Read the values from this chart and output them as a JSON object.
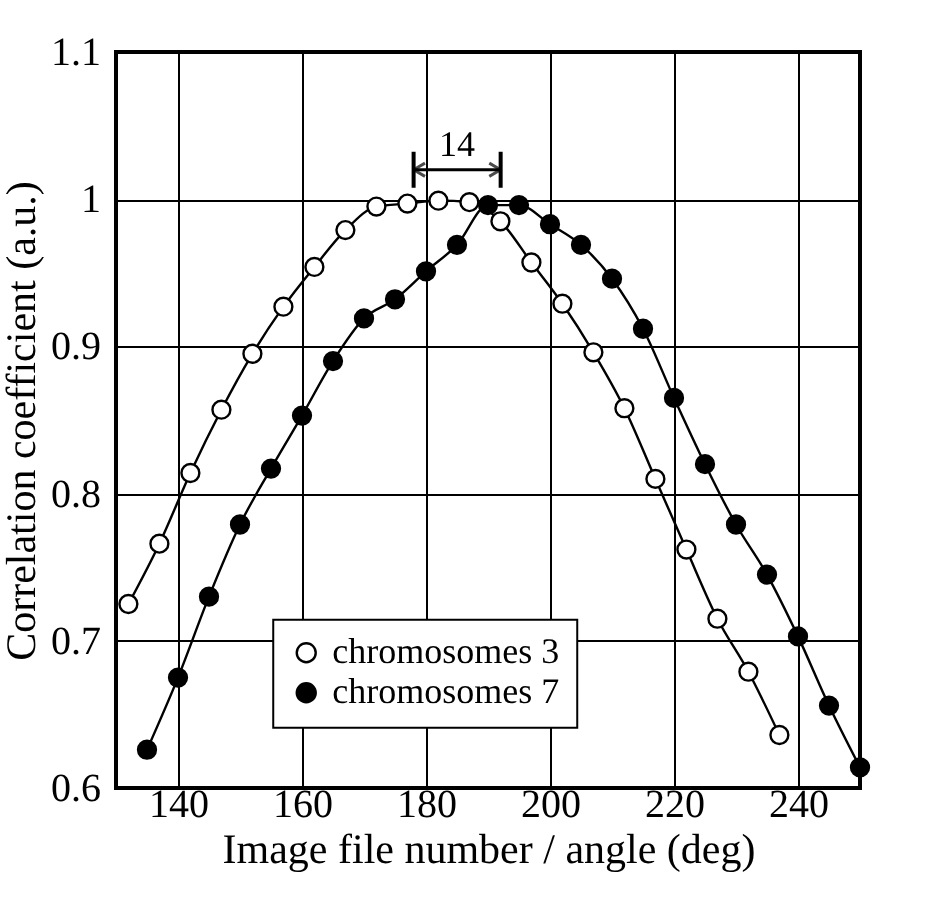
{
  "chart_data": {
    "type": "line",
    "xlabel": "Image file number / angle (deg)",
    "ylabel": "Correlation coefficient (a.u.)",
    "xlim": [
      130,
      250
    ],
    "xticks": [
      140,
      160,
      180,
      200,
      220,
      240
    ],
    "ylim": [
      0.6,
      1.1
    ],
    "yticks": [
      {
        "value": 0.6,
        "label": "0.6"
      },
      {
        "value": 0.7,
        "label": "0.7"
      },
      {
        "value": 0.8,
        "label": "0.8"
      },
      {
        "value": 0.9,
        "label": "0.9"
      },
      {
        "value": 1,
        "label": "1"
      },
      {
        "value": 1.1,
        "label": "1.1"
      }
    ],
    "grid": true,
    "legend": "bottom",
    "marker": "circle",
    "line_style": "solid",
    "annotations": [
      "14"
    ],
    "series": [
      {
        "name": "chromosomes 3",
        "color": "#000000",
        "x": [
          132,
          137,
          142,
          147,
          152,
          157,
          162,
          167,
          172,
          177,
          182,
          187,
          192,
          197,
          202,
          207,
          212,
          217,
          222,
          227,
          232,
          237
        ],
        "values": [
          0.725,
          0.766,
          0.814,
          0.857,
          0.895,
          0.927,
          0.954,
          0.979,
          0.995,
          0.997,
          0.999,
          0.998,
          0.985,
          0.957,
          0.929,
          0.896,
          0.858,
          0.81,
          0.762,
          0.715,
          0.679,
          0.636
        ]
      },
      {
        "name": "chromosomes 7",
        "color": "#000000",
        "x": [
          135,
          140,
          145,
          150,
          155,
          160,
          165,
          170,
          175,
          180,
          185,
          190,
          195,
          200,
          205,
          210,
          215,
          220,
          225,
          230,
          235,
          240,
          245,
          250
        ],
        "values": [
          0.626,
          0.675,
          0.73,
          0.779,
          0.817,
          0.853,
          0.89,
          0.919,
          0.932,
          0.951,
          0.969,
          0.996,
          0.996,
          0.983,
          0.969,
          0.946,
          0.912,
          0.865,
          0.82,
          0.779,
          0.745,
          0.703,
          0.656,
          0.614
        ]
      }
    ]
  }
}
